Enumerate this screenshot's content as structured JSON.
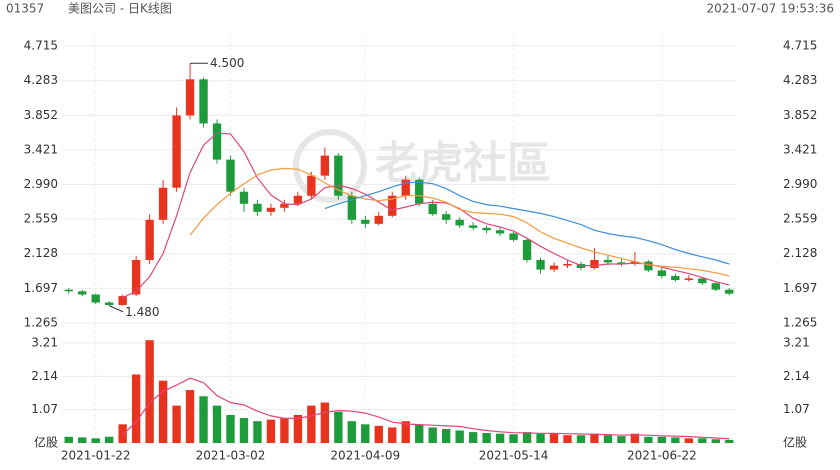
{
  "header": {
    "code": "01357",
    "title": "美图公司 - 日K线图",
    "timestamp": "2021-07-07 19:53:36"
  },
  "watermark": "老虎社區",
  "chart_data": {
    "type": "candlestick",
    "categories": [
      null,
      null,
      "2021-01-22",
      null,
      null,
      null,
      null,
      null,
      null,
      null,
      null,
      null,
      "2021-03-02",
      null,
      null,
      null,
      null,
      null,
      null,
      null,
      null,
      null,
      "2021-04-09",
      null,
      null,
      null,
      null,
      null,
      null,
      null,
      null,
      null,
      null,
      "2021-05-14",
      null,
      null,
      null,
      null,
      null,
      null,
      null,
      null,
      null,
      null,
      "2021-06-22",
      null,
      null,
      null,
      null,
      null
    ],
    "open": [
      1.68,
      1.66,
      1.62,
      1.52,
      1.49,
      1.62,
      2.05,
      2.55,
      2.95,
      3.85,
      4.3,
      3.75,
      3.3,
      2.9,
      2.75,
      2.65,
      2.7,
      2.75,
      2.85,
      3.1,
      3.35,
      2.85,
      2.55,
      2.5,
      2.6,
      2.85,
      3.05,
      2.75,
      2.62,
      2.55,
      2.48,
      2.45,
      2.42,
      2.38,
      2.3,
      2.05,
      1.93,
      1.98,
      2.0,
      1.95,
      2.05,
      2.02,
      2.0,
      2.03,
      1.92,
      1.85,
      1.8,
      1.82,
      1.76,
      1.68
    ],
    "high": [
      1.7,
      1.68,
      1.63,
      1.54,
      1.62,
      2.1,
      2.62,
      3.05,
      3.95,
      4.5,
      4.32,
      3.8,
      3.35,
      2.95,
      2.8,
      2.75,
      2.8,
      2.9,
      3.15,
      3.45,
      3.38,
      2.9,
      2.6,
      2.65,
      2.9,
      3.1,
      3.08,
      2.8,
      2.66,
      2.58,
      2.52,
      2.48,
      2.45,
      2.4,
      2.32,
      2.08,
      2.02,
      2.05,
      2.03,
      2.2,
      2.1,
      2.06,
      2.15,
      2.05,
      1.95,
      1.88,
      1.86,
      1.84,
      1.78,
      1.7
    ],
    "low": [
      1.63,
      1.6,
      1.5,
      1.48,
      1.48,
      1.6,
      2.0,
      2.5,
      2.9,
      3.8,
      3.7,
      3.25,
      2.85,
      2.65,
      2.6,
      2.6,
      2.65,
      2.72,
      2.8,
      3.05,
      2.8,
      2.5,
      2.45,
      2.48,
      2.58,
      2.8,
      2.72,
      2.6,
      2.5,
      2.45,
      2.42,
      2.38,
      2.35,
      2.28,
      2.02,
      1.88,
      1.9,
      1.95,
      1.92,
      1.93,
      1.98,
      1.97,
      1.98,
      1.9,
      1.82,
      1.78,
      1.78,
      1.74,
      1.66,
      1.61
    ],
    "close": [
      1.66,
      1.62,
      1.52,
      1.49,
      1.6,
      2.05,
      2.55,
      2.95,
      3.85,
      4.3,
      3.75,
      3.3,
      2.9,
      2.75,
      2.65,
      2.7,
      2.75,
      2.85,
      3.1,
      3.35,
      2.85,
      2.55,
      2.5,
      2.6,
      2.85,
      3.05,
      2.75,
      2.62,
      2.55,
      2.48,
      2.45,
      2.42,
      2.38,
      2.3,
      2.05,
      1.93,
      1.98,
      2.0,
      1.95,
      2.05,
      2.02,
      2.0,
      2.03,
      1.92,
      1.85,
      1.8,
      1.82,
      1.76,
      1.68,
      1.63
    ],
    "up_color": "#e8341f",
    "down_color": "#1e9b3a",
    "ma": [
      {
        "color": "#e2457a",
        "values": [
          null,
          null,
          null,
          null,
          1.58,
          1.66,
          1.84,
          2.13,
          2.6,
          3.14,
          3.48,
          3.63,
          3.62,
          3.4,
          3.07,
          2.86,
          2.75,
          2.74,
          2.81,
          2.95,
          2.98,
          2.94,
          2.87,
          2.77,
          2.67,
          2.71,
          2.75,
          2.77,
          2.76,
          2.69,
          2.57,
          2.5,
          2.46,
          2.41,
          2.32,
          2.22,
          2.13,
          2.05,
          1.98,
          1.98,
          2.0,
          2.0,
          2.01,
          2.0,
          1.96,
          1.92,
          1.88,
          1.83,
          1.78,
          1.74
        ]
      },
      {
        "color": "#f39a3c",
        "values": [
          null,
          null,
          null,
          null,
          null,
          null,
          null,
          null,
          null,
          2.36,
          2.57,
          2.74,
          2.88,
          3.0,
          3.11,
          3.17,
          3.19,
          3.18,
          3.11,
          3.01,
          2.92,
          2.85,
          2.81,
          2.79,
          2.81,
          2.85,
          2.85,
          2.82,
          2.77,
          2.68,
          2.64,
          2.63,
          2.62,
          2.59,
          2.51,
          2.4,
          2.32,
          2.26,
          2.2,
          2.15,
          2.11,
          2.07,
          2.03,
          1.99,
          1.97,
          1.96,
          1.94,
          1.92,
          1.89,
          1.85
        ]
      },
      {
        "color": "#3d8fd6",
        "values": [
          null,
          null,
          null,
          null,
          null,
          null,
          null,
          null,
          null,
          null,
          null,
          null,
          null,
          null,
          null,
          null,
          null,
          null,
          null,
          2.69,
          2.75,
          2.8,
          2.85,
          2.9,
          2.96,
          3.01,
          3.02,
          3.0,
          2.94,
          2.85,
          2.78,
          2.74,
          2.72,
          2.69,
          2.66,
          2.63,
          2.59,
          2.54,
          2.49,
          2.42,
          2.38,
          2.35,
          2.33,
          2.29,
          2.24,
          2.18,
          2.13,
          2.09,
          2.05,
          2.0
        ]
      }
    ],
    "ylim": [
      1.265,
      4.715
    ],
    "yticks": [
      1.265,
      1.697,
      2.128,
      2.559,
      {
        "value": 2.99,
        "label": "2.990"
      },
      3.421,
      3.852,
      4.283,
      4.715
    ],
    "max_label": {
      "value": 4.5,
      "label": "4.500"
    },
    "min_label": {
      "value": 1.48,
      "label": "1.480"
    },
    "grid": true,
    "volume": {
      "values": [
        0.2,
        0.18,
        0.15,
        0.2,
        0.6,
        2.2,
        3.3,
        2.0,
        1.2,
        1.7,
        1.5,
        1.2,
        0.9,
        0.8,
        0.7,
        0.75,
        0.8,
        0.9,
        1.2,
        1.3,
        1.0,
        0.7,
        0.6,
        0.55,
        0.5,
        0.7,
        0.6,
        0.5,
        0.45,
        0.4,
        0.35,
        0.32,
        0.3,
        0.28,
        0.35,
        0.3,
        0.3,
        0.25,
        0.25,
        0.3,
        0.25,
        0.22,
        0.3,
        0.2,
        0.2,
        0.18,
        0.15,
        0.15,
        0.12,
        0.1
      ],
      "ma": [
        {
          "color": "#e2457a",
          "values": [
            null,
            null,
            null,
            null,
            0.27,
            0.67,
            1.29,
            1.66,
            1.86,
            2.08,
            1.94,
            1.52,
            1.3,
            1.22,
            1.02,
            0.87,
            0.79,
            0.79,
            0.87,
            0.99,
            1.04,
            1.02,
            0.96,
            0.83,
            0.67,
            0.61,
            0.59,
            0.57,
            0.55,
            0.53,
            0.46,
            0.4,
            0.36,
            0.33,
            0.32,
            0.31,
            0.31,
            0.3,
            0.29,
            0.28,
            0.27,
            0.25,
            0.26,
            0.25,
            0.23,
            0.22,
            0.21,
            0.18,
            0.16,
            0.14
          ]
        }
      ],
      "ylim": [
        0,
        3.21
      ],
      "yticks": [
        {
          "value": 0,
          "label": "亿股"
        },
        1.07,
        2.14,
        3.21
      ]
    }
  }
}
